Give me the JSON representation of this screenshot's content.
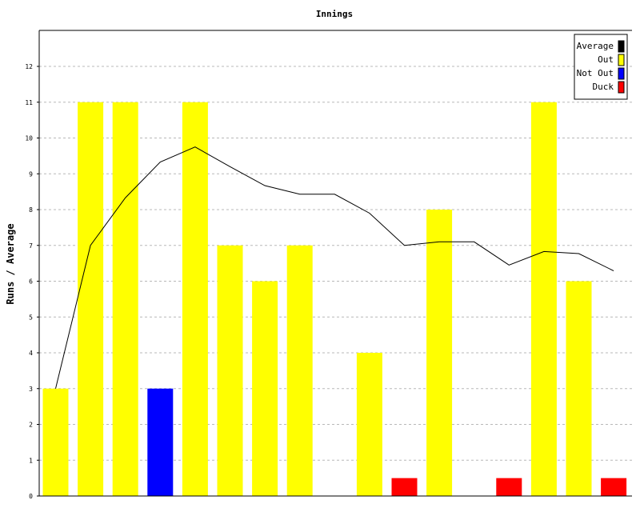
{
  "chart_data": {
    "type": "bar",
    "title": "Innings",
    "ylabel": "Runs / Average",
    "xlabel": "",
    "ylim": [
      0,
      13
    ],
    "yticks": [
      0,
      1,
      2,
      3,
      4,
      5,
      6,
      7,
      8,
      9,
      10,
      11,
      12
    ],
    "grid": true,
    "legend_position": "top-right",
    "legend": [
      {
        "label": "Average",
        "color": "#000000"
      },
      {
        "label": "Out",
        "color": "#ffff00"
      },
      {
        "label": "Not Out",
        "color": "#0000ff"
      },
      {
        "label": "Duck",
        "color": "#ff0000"
      }
    ],
    "innings": [
      {
        "runs": 3,
        "status": "Out"
      },
      {
        "runs": 11,
        "status": "Out"
      },
      {
        "runs": 11,
        "status": "Out"
      },
      {
        "runs": 3,
        "status": "Not Out"
      },
      {
        "runs": 11,
        "status": "Out"
      },
      {
        "runs": 7,
        "status": "Out"
      },
      {
        "runs": 6,
        "status": "Out"
      },
      {
        "runs": 7,
        "status": "Out"
      },
      {
        "runs": 0,
        "status": "Not Out"
      },
      {
        "runs": 4,
        "status": "Out"
      },
      {
        "runs": 0.5,
        "status": "Duck"
      },
      {
        "runs": 8,
        "status": "Out"
      },
      {
        "runs": 0,
        "status": "Not Out"
      },
      {
        "runs": 0.5,
        "status": "Duck"
      },
      {
        "runs": 11,
        "status": "Out"
      },
      {
        "runs": 6,
        "status": "Out"
      },
      {
        "runs": 0.5,
        "status": "Duck"
      }
    ],
    "average": [
      3,
      7,
      8.33,
      9.33,
      9.75,
      9.2,
      8.67,
      8.43,
      8.43,
      7.9,
      7.0,
      7.1,
      7.1,
      6.45,
      6.83,
      6.77,
      6.29
    ]
  }
}
